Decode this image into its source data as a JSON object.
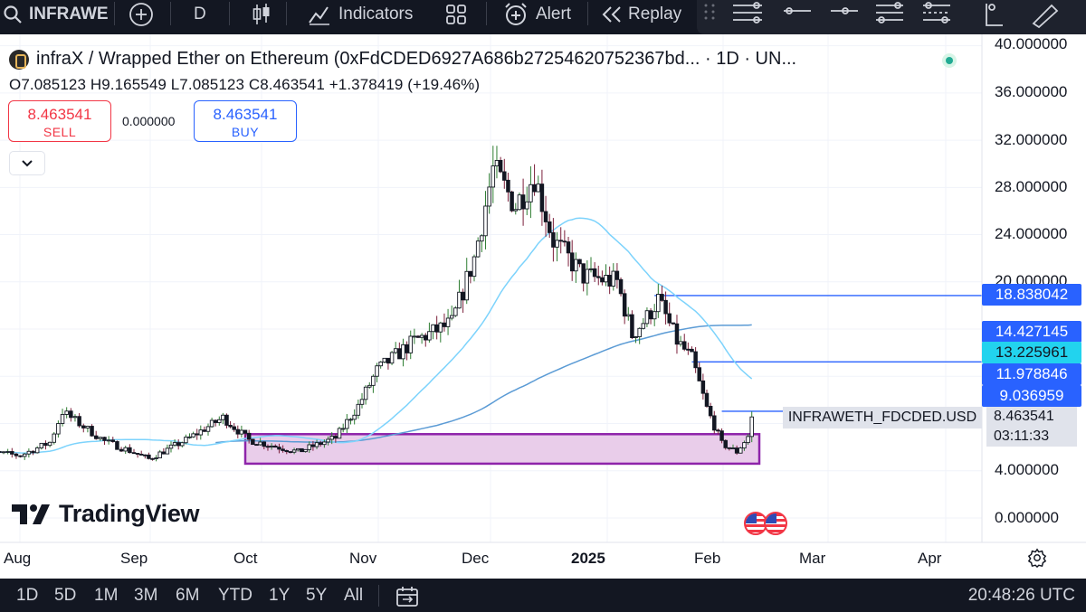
{
  "toolbar": {
    "symbol": "INFRAWE",
    "interval": "D",
    "indicators_label": "Indicators",
    "alert_label": "Alert",
    "replay_label": "Replay"
  },
  "legend": {
    "title": "infraX / Wrapped Ether on Ethereum (0xFdCDED6927A686b27254620752367bd...  · 1D · UN...",
    "ohlc": "O7.085123  H9.165549  L7.085123  C8.463541  +1.378419 (+19.46%)"
  },
  "trade": {
    "sell_price": "8.463541",
    "sell_label": "SELL",
    "spread": "0.000000",
    "buy_price": "8.463541",
    "buy_label": "BUY"
  },
  "price_axis": {
    "ticks": [
      "40.000000",
      "36.000000",
      "32.000000",
      "28.000000",
      "24.000000",
      "20.000000",
      "4.000000",
      "0.000000"
    ],
    "tags": [
      {
        "value": "18.838042",
        "color": "#2962ff",
        "text_color": "#ffffff"
      },
      {
        "value": "14.427145",
        "color": "#2962ff",
        "text_color": "#ffffff"
      },
      {
        "value": "13.225961",
        "color": "#22d3ee",
        "text_color": "#131722"
      },
      {
        "value": "11.978846",
        "color": "#2962ff",
        "text_color": "#ffffff"
      },
      {
        "value": "9.036959",
        "color": "#2962ff",
        "text_color": "#ffffff"
      }
    ],
    "current_price": "8.463541",
    "countdown": "03:11:33",
    "symbol_label": "INFRAWETH_FDCDED.USD"
  },
  "time_axis": [
    "Aug",
    "Sep",
    "Oct",
    "Nov",
    "Dec",
    "2025",
    "Feb",
    "Mar",
    "Apr"
  ],
  "branding": "TradingView",
  "bottom": {
    "ranges": [
      "1D",
      "5D",
      "1M",
      "3M",
      "6M",
      "YTD",
      "1Y",
      "5Y",
      "All"
    ],
    "clock": "20:48:26 UTC"
  },
  "colors": {
    "up_candle": "#ffffff",
    "down_candle": "#131722",
    "ma_fast": "#7dd3fc",
    "ma_slow": "#5b9bd5",
    "zone_fill": "#e9cdea",
    "zone_border": "#8e24aa",
    "hline": "#2962ff"
  },
  "chart_data": {
    "type": "candlestick",
    "x": [
      "2024-08-01",
      "2024-09-01",
      "2024-10-01",
      "2024-11-01",
      "2024-12-01",
      "2025-01-01",
      "2025-02-01",
      "2025-02-13"
    ],
    "close_path": [
      5.5,
      6.2,
      6.0,
      6.0,
      29.5,
      20.5,
      8.46,
      8.46
    ],
    "ylim": [
      0,
      40
    ],
    "horizontal_lines": [
      18.838042,
      13.225961,
      9.036959
    ],
    "zone": {
      "from": "2024-10-01",
      "to": "2025-02-15",
      "low": 4.6,
      "high": 7.1
    }
  }
}
